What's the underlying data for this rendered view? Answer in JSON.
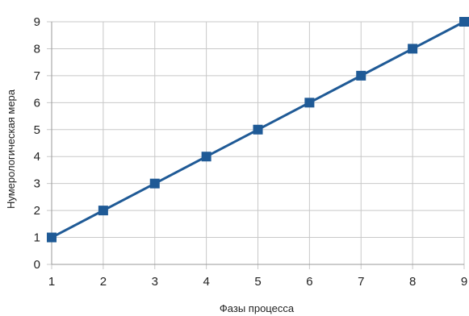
{
  "chart_data": {
    "type": "line",
    "title": "",
    "xlabel": "Фазы процесса",
    "ylabel": "Нумерологическая мера",
    "x": [
      1,
      2,
      3,
      4,
      5,
      6,
      7,
      8,
      9
    ],
    "series": [
      {
        "values": [
          1,
          2,
          3,
          4,
          5,
          6,
          7,
          8,
          9
        ]
      }
    ],
    "xlim": [
      1,
      9
    ],
    "ylim": [
      0,
      9
    ],
    "xticks": [
      1,
      2,
      3,
      4,
      5,
      6,
      7,
      8,
      9
    ],
    "yticks": [
      0,
      1,
      2,
      3,
      4,
      5,
      6,
      7,
      8,
      9
    ],
    "grid": "horizontal and vertical",
    "legend": "none",
    "marker": "square",
    "colors": {
      "series": "#1f5a96",
      "grid": "#c8c8c8",
      "axis": "#9a9a9a"
    }
  }
}
